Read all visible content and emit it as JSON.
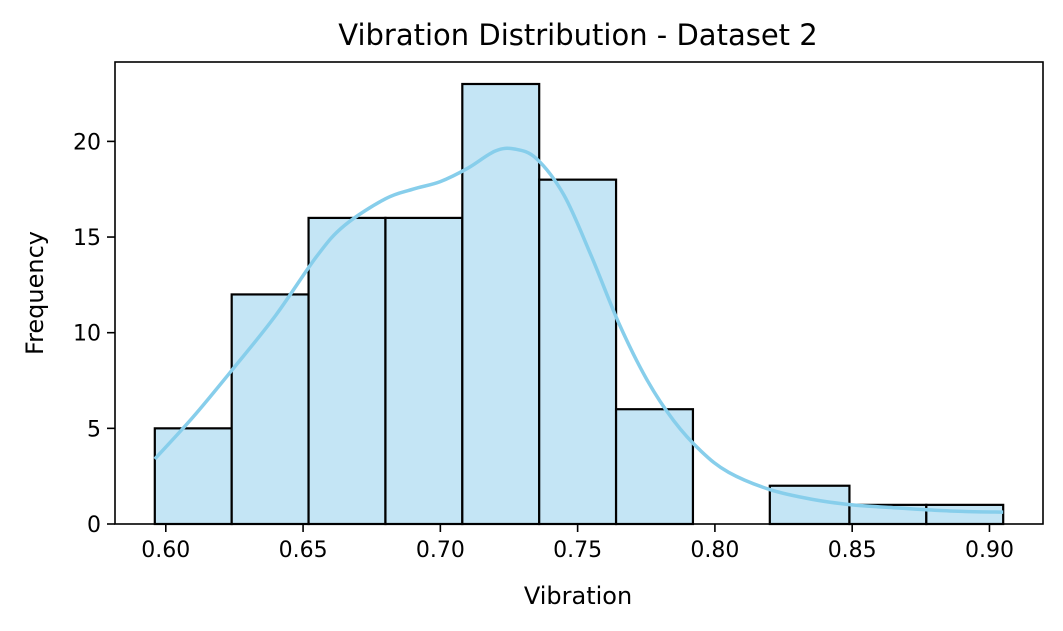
{
  "chart_data": {
    "type": "bar",
    "title": "Vibration Distribution - Dataset 2",
    "xlabel": "Vibration",
    "ylabel": "Frequency",
    "xlim": [
      0.5815,
      0.9195
    ],
    "ylim": [
      0,
      24.15
    ],
    "x_ticks": [
      "0.60",
      "0.65",
      "0.70",
      "0.75",
      "0.80",
      "0.85",
      "0.90"
    ],
    "y_ticks": [
      "0",
      "5",
      "10",
      "15",
      "20"
    ],
    "bins": [
      {
        "x0": 0.596,
        "x1": 0.624,
        "count": 5
      },
      {
        "x0": 0.624,
        "x1": 0.652,
        "count": 12
      },
      {
        "x0": 0.652,
        "x1": 0.68,
        "count": 16
      },
      {
        "x0": 0.68,
        "x1": 0.708,
        "count": 16
      },
      {
        "x0": 0.708,
        "x1": 0.736,
        "count": 23
      },
      {
        "x0": 0.736,
        "x1": 0.764,
        "count": 18
      },
      {
        "x0": 0.764,
        "x1": 0.792,
        "count": 6
      },
      {
        "x0": 0.792,
        "x1": 0.82,
        "count": 0
      },
      {
        "x0": 0.82,
        "x1": 0.849,
        "count": 2
      },
      {
        "x0": 0.849,
        "x1": 0.877,
        "count": 1
      },
      {
        "x0": 0.877,
        "x1": 0.905,
        "count": 1
      }
    ],
    "kde": {
      "x": [
        0.596,
        0.61,
        0.625,
        0.64,
        0.655,
        0.665,
        0.68,
        0.69,
        0.7,
        0.71,
        0.72,
        0.727,
        0.735,
        0.745,
        0.755,
        0.765,
        0.775,
        0.785,
        0.795,
        0.805,
        0.82,
        0.835,
        0.85,
        0.865,
        0.88,
        0.893,
        0.905
      ],
      "y": [
        3.4,
        5.6,
        8.2,
        10.9,
        14.0,
        15.6,
        17.0,
        17.5,
        17.9,
        18.6,
        19.5,
        19.6,
        19.1,
        17.2,
        14.0,
        10.5,
        7.6,
        5.4,
        3.8,
        2.7,
        1.8,
        1.3,
        1.0,
        0.85,
        0.72,
        0.65,
        0.62
      ]
    },
    "colors": {
      "bar_fill": "#c4e5f5",
      "bar_edge": "#000000",
      "kde_line": "#87ceeb"
    },
    "grid": false,
    "legend": "none"
  }
}
